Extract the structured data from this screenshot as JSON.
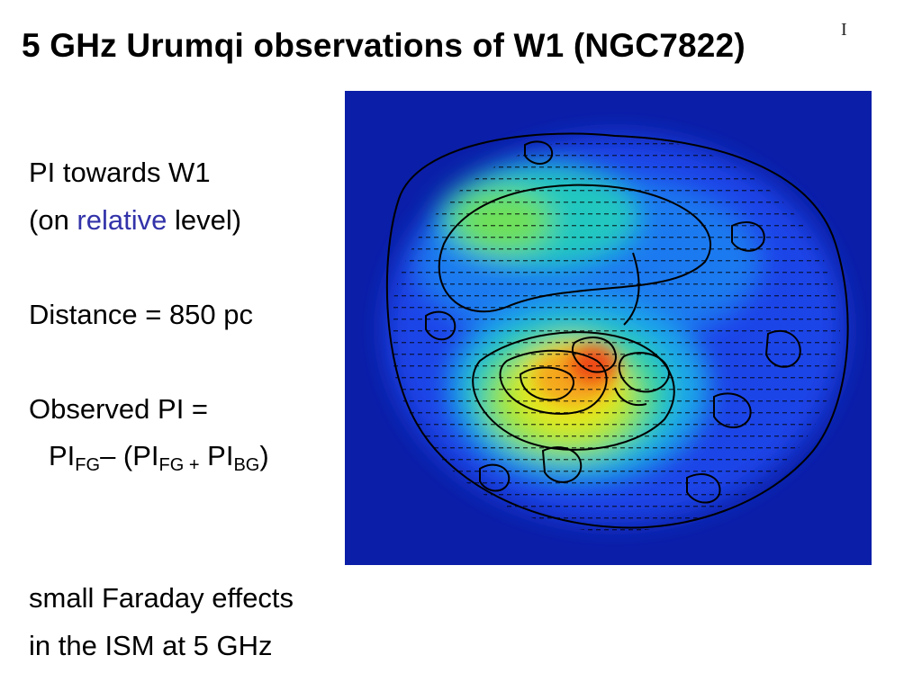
{
  "slide": {
    "title": "5 GHz Urumqi observations of W1 (NGC7822)",
    "cursor_glyph": "I",
    "lines": {
      "pi_towards": "PI towards W1",
      "on_open": "(on ",
      "relative": "relative",
      "level_close": " level)",
      "distance": "Distance = 850 pc",
      "observed": "Observed PI =",
      "eq_pi1": "PI",
      "eq_fg1": "FG",
      "eq_minus": "– (PI",
      "eq_fg2": "FG +",
      "eq_pi3": " PI",
      "eq_bg": "BG",
      "eq_close": ")",
      "faraday1": "small Faraday effects",
      "faraday2": "in the ISM at 5 GHz"
    },
    "colors": {
      "accent": "#3333aa",
      "map_background": "#0a1ea8"
    }
  }
}
